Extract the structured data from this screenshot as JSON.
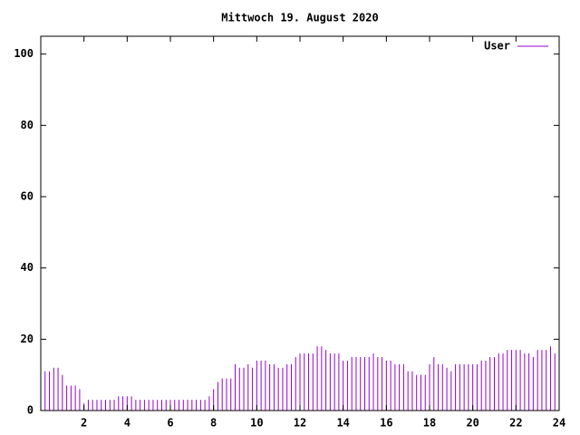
{
  "chart_data": {
    "type": "impulse",
    "title": "Mittwoch 19. August 2020",
    "series": [
      {
        "name": "User",
        "color": "#9400d3",
        "values": [
          11,
          11,
          11,
          12,
          12,
          10,
          7,
          7,
          7,
          6,
          2,
          3,
          3,
          3,
          3,
          3,
          3,
          3,
          4,
          4,
          4,
          4,
          3,
          3,
          3,
          3,
          3,
          3,
          3,
          3,
          3,
          3,
          3,
          3,
          3,
          3,
          3,
          3,
          3,
          4,
          6,
          8,
          9,
          9,
          9,
          13,
          12,
          12,
          13,
          12,
          14,
          14,
          14,
          13,
          13,
          12,
          12,
          13,
          13,
          15,
          16,
          16,
          16,
          16,
          18,
          18,
          17,
          16,
          16,
          16,
          14,
          14,
          15,
          15,
          15,
          15,
          15,
          16,
          15,
          15,
          14,
          14,
          13,
          13,
          13,
          11,
          11,
          10,
          10,
          10,
          13,
          15,
          13,
          13,
          12,
          11,
          13,
          13,
          13,
          13,
          13,
          13,
          14,
          14,
          15,
          15,
          16,
          16,
          17,
          17,
          17,
          17,
          16,
          16,
          15,
          17,
          17,
          17,
          18,
          16
        ]
      }
    ],
    "x": [
      0,
      0.2,
      0.4,
      0.6,
      0.8,
      1,
      1.2,
      1.4,
      1.6,
      1.8,
      2,
      2.2,
      2.4,
      2.6,
      2.8,
      3,
      3.2,
      3.4,
      3.6,
      3.8,
      4,
      4.2,
      4.4,
      4.6,
      4.8,
      5,
      5.2,
      5.4,
      5.6,
      5.8,
      6,
      6.2,
      6.4,
      6.6,
      6.8,
      7,
      7.2,
      7.4,
      7.6,
      7.8,
      8,
      8.2,
      8.4,
      8.6,
      8.8,
      9,
      9.2,
      9.4,
      9.6,
      9.8,
      10,
      10.2,
      10.4,
      10.6,
      10.8,
      11,
      11.2,
      11.4,
      11.6,
      11.8,
      12,
      12.2,
      12.4,
      12.6,
      12.8,
      13,
      13.2,
      13.4,
      13.6,
      13.8,
      14,
      14.2,
      14.4,
      14.6,
      14.8,
      15,
      15.2,
      15.4,
      15.6,
      15.8,
      16,
      16.2,
      16.4,
      16.6,
      16.8,
      17,
      17.2,
      17.4,
      17.6,
      17.8,
      18,
      18.2,
      18.4,
      18.6,
      18.8,
      19,
      19.2,
      19.4,
      19.6,
      19.8,
      20,
      20.2,
      20.4,
      20.6,
      20.8,
      21,
      21.2,
      21.4,
      21.6,
      21.8,
      22,
      22.2,
      22.4,
      22.6,
      22.8,
      23,
      23.2,
      23.4,
      23.6,
      23.8
    ],
    "xlim": [
      0,
      24
    ],
    "xticks": [
      2,
      4,
      6,
      8,
      10,
      12,
      14,
      16,
      18,
      20,
      22,
      24
    ],
    "ylim": [
      0,
      105
    ],
    "yticks": [
      0,
      20,
      40,
      60,
      80,
      100
    ],
    "legend": "top-right"
  }
}
